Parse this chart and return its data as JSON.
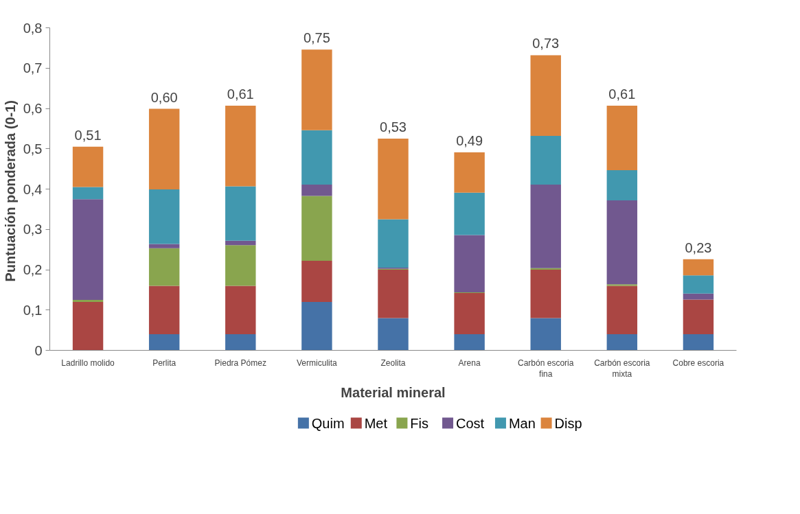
{
  "chart_data": {
    "type": "bar",
    "stacked": true,
    "xlabel": "Material mineral",
    "ylabel": "Puntuación ponderada  (0-1)",
    "categories": [
      "Ladrillo molido",
      "Perlita",
      "Piedra Pómez",
      "Vermiculita",
      "Zeolita",
      "Arena",
      "Carbón escoria fina",
      "Carbón escoria mixta",
      "Cobre escoria"
    ],
    "series": [
      {
        "name": "Quim",
        "color": "#4572a7",
        "values": [
          0,
          0.04,
          0.04,
          0.12,
          0.08,
          0.04,
          0.08,
          0.04,
          0.04
        ]
      },
      {
        "name": "Met",
        "color": "#aa4643",
        "values": [
          0.12,
          0.12,
          0.12,
          0.102,
          0.12,
          0.102,
          0.12,
          0.12,
          0.086
        ]
      },
      {
        "name": "Fis",
        "color": "#89a54e",
        "values": [
          0.005,
          0.093,
          0.101,
          0.161,
          0.002,
          0.002,
          0.004,
          0.004,
          0
        ]
      },
      {
        "name": "Cost",
        "color": "#71588f",
        "values": [
          0.25,
          0.011,
          0.011,
          0.028,
          0.003,
          0.142,
          0.207,
          0.208,
          0.015
        ]
      },
      {
        "name": "Man",
        "color": "#4198af",
        "values": [
          0.03,
          0.135,
          0.135,
          0.135,
          0.12,
          0.105,
          0.121,
          0.075,
          0.045
        ]
      },
      {
        "name": "Disp",
        "color": "#db843d",
        "values": [
          0.1,
          0.2,
          0.2,
          0.2,
          0.2,
          0.1,
          0.2,
          0.16,
          0.04
        ]
      }
    ],
    "totals": [
      "0,51",
      "0,60",
      "0,61",
      "0,75",
      "0,53",
      "0,49",
      "0,73",
      "0,61",
      "0,23"
    ],
    "ylim": [
      0,
      0.8
    ],
    "yticks": [
      0,
      {
        "value": 0.1,
        "label": "0,1"
      },
      {
        "value": 0.2,
        "label": "0,2"
      },
      {
        "value": 0.3,
        "label": "0,3"
      },
      {
        "value": 0.4,
        "label": "0,4"
      },
      {
        "value": 0.5,
        "label": "0,5"
      },
      {
        "value": 0.6,
        "label": "0,6"
      },
      {
        "value": 0.7,
        "label": "0,7"
      },
      {
        "value": 0.8,
        "label": "0,8"
      }
    ],
    "grid": false,
    "legend": "bottom"
  }
}
